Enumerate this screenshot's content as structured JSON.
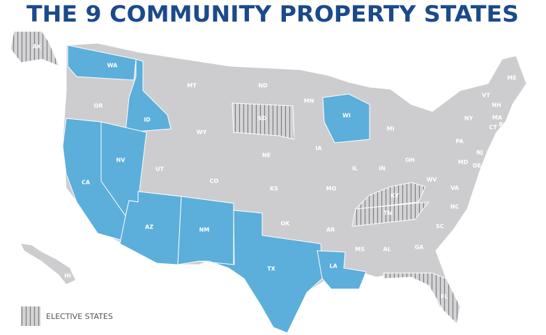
{
  "header": {
    "title": "THE 9 COMMUNITY PROPERTY STATES"
  },
  "legend": {
    "label": "ELECTIVE STATES"
  },
  "states": {
    "community_property": [
      "WA",
      "ID",
      "NV",
      "CA",
      "AZ",
      "NM",
      "TX",
      "LA",
      "WI"
    ],
    "elective": [
      "AK",
      "SD",
      "KY",
      "TN",
      "FL"
    ],
    "other": [
      "OR",
      "MT",
      "ND",
      "WY",
      "MN",
      "NE",
      "IA",
      "UT",
      "CO",
      "KS",
      "IL",
      "IN",
      "OH",
      "MO",
      "OK",
      "AR",
      "MS",
      "AL",
      "GA",
      "SC",
      "NC",
      "VA",
      "WV",
      "MI",
      "NY",
      "PA",
      "VT",
      "NH",
      "ME",
      "MA",
      "RI",
      "CT",
      "NJ",
      "MD",
      "DE",
      "HI"
    ]
  }
}
